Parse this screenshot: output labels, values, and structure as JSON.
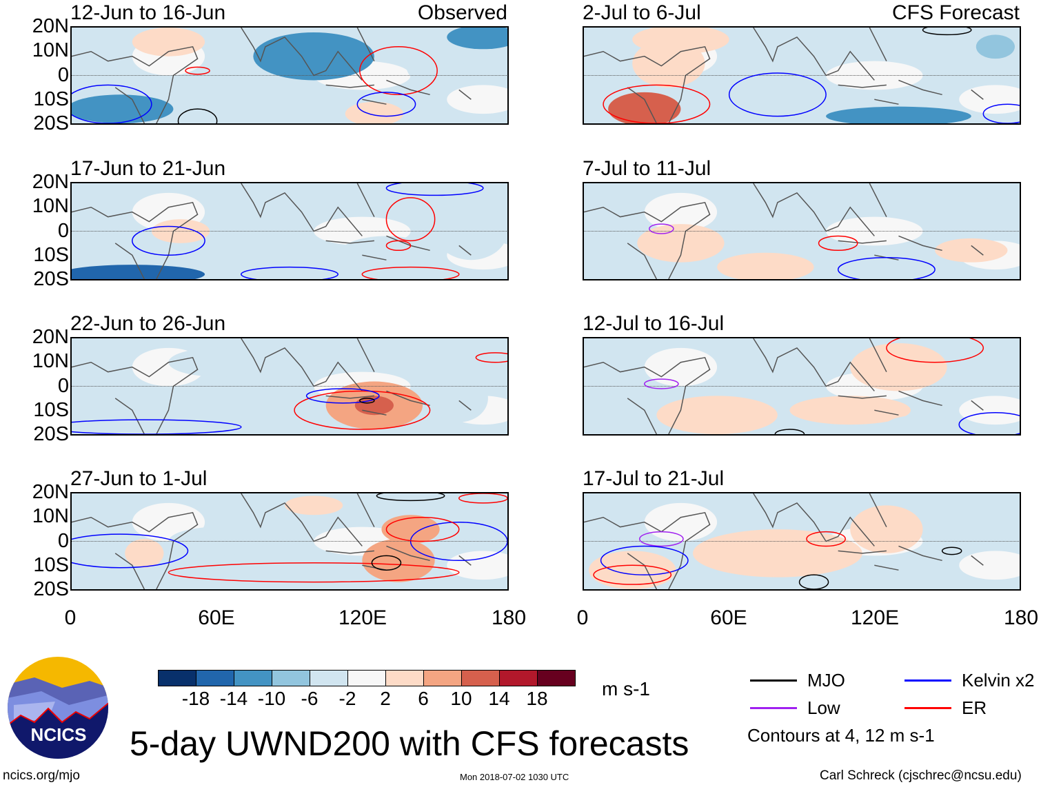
{
  "chart_data": {
    "type": "heatmap",
    "title": "5-day UWND200 with CFS forecasts",
    "units": "m s-1",
    "xlim": [
      0,
      180
    ],
    "ylim": [
      -20,
      20
    ],
    "x_ticks": [
      "0",
      "60E",
      "120E",
      "180"
    ],
    "y_ticks": [
      "20N",
      "10N",
      "0",
      "10S",
      "20S"
    ],
    "colorbar": {
      "labels": [
        "-18",
        "-14",
        "-10",
        "-6",
        "-2",
        "2",
        "6",
        "10",
        "14",
        "18"
      ],
      "colors": [
        "#08306b",
        "#2166ac",
        "#4393c3",
        "#92c5de",
        "#d1e5f0",
        "#f7f7f7",
        "#fddbc7",
        "#f4a582",
        "#d6604d",
        "#b2182b",
        "#67001f"
      ]
    },
    "columns": [
      {
        "label": "Observed"
      },
      {
        "label": "CFS Forecast"
      }
    ],
    "panels": [
      {
        "title": "12-Jun to 16-Jun",
        "corner": "Observed",
        "col": 0,
        "row": 0,
        "fill": [
          [
            100,
            8,
            25,
            10,
            -10
          ],
          [
            20,
            -14,
            22,
            6,
            -10
          ],
          [
            40,
            14,
            15,
            6,
            4
          ],
          [
            125,
            -16,
            12,
            5,
            4
          ],
          [
            170,
            16,
            15,
            5,
            -10
          ],
          [
            65,
            -5,
            12,
            8,
            -4
          ],
          [
            150,
            5,
            12,
            10,
            -4
          ]
        ],
        "contours": [
          [
            "ER",
            135,
            2,
            16,
            10
          ],
          [
            "Kelvin",
            130,
            -12,
            12,
            5
          ],
          [
            "MJO",
            52,
            -19,
            8,
            5
          ],
          [
            "ER",
            52,
            2,
            5,
            1.5
          ],
          [
            "Kelvin",
            15,
            -12,
            18,
            8
          ]
        ]
      },
      {
        "title": "2-Jul to 6-Jul",
        "corner": "CFS Forecast",
        "col": 1,
        "row": 0,
        "fill": [
          [
            25,
            -14,
            15,
            7,
            14
          ],
          [
            35,
            5,
            15,
            10,
            4
          ],
          [
            130,
            -17,
            30,
            4,
            -10
          ],
          [
            40,
            15,
            20,
            6,
            4
          ],
          [
            95,
            10,
            20,
            6,
            -4
          ],
          [
            170,
            12,
            8,
            5,
            -6
          ]
        ],
        "contours": [
          [
            "Kelvin",
            80,
            -8,
            20,
            9
          ],
          [
            "ER",
            30,
            -12,
            22,
            8
          ],
          [
            "Kelvin",
            175,
            -16,
            10,
            4
          ],
          [
            "MJO",
            150,
            19,
            10,
            2
          ]
        ]
      },
      {
        "title": "17-Jun to 21-Jun",
        "corner": "",
        "col": 0,
        "row": 1,
        "fill": [
          [
            25,
            -18,
            30,
            4,
            -14
          ],
          [
            45,
            0,
            12,
            5,
            4
          ],
          [
            130,
            -10,
            20,
            8,
            -4
          ],
          [
            165,
            0,
            15,
            12,
            -4
          ],
          [
            10,
            5,
            10,
            8,
            -4
          ]
        ],
        "contours": [
          [
            "ER",
            140,
            5,
            10,
            9
          ],
          [
            "Kelvin",
            40,
            -4,
            15,
            6
          ],
          [
            "Kelvin",
            150,
            18,
            20,
            3
          ],
          [
            "ER",
            140,
            -18,
            20,
            3
          ],
          [
            "Kelvin",
            90,
            -18,
            20,
            3
          ],
          [
            "ER",
            135,
            -6,
            5,
            2
          ]
        ]
      },
      {
        "title": "7-Jul to 11-Jul",
        "corner": "",
        "col": 1,
        "row": 1,
        "fill": [
          [
            75,
            -15,
            20,
            6,
            6
          ],
          [
            40,
            -5,
            18,
            8,
            4
          ],
          [
            160,
            5,
            15,
            10,
            -4
          ],
          [
            130,
            -15,
            20,
            5,
            -4
          ],
          [
            160,
            -8,
            15,
            5,
            4
          ]
        ],
        "contours": [
          [
            "Low",
            32,
            1,
            5,
            2
          ],
          [
            "ER",
            105,
            -5,
            8,
            3
          ],
          [
            "Kelvin",
            125,
            -16,
            20,
            5
          ]
        ]
      },
      {
        "title": "22-Jun to 26-Jun",
        "corner": "",
        "col": 0,
        "row": 2,
        "fill": [
          [
            125,
            -8,
            20,
            10,
            10
          ],
          [
            125,
            -8,
            8,
            4,
            14
          ],
          [
            60,
            10,
            20,
            6,
            -4
          ],
          [
            160,
            -5,
            12,
            10,
            -4
          ],
          [
            30,
            -15,
            20,
            5,
            -4
          ]
        ],
        "contours": [
          [
            "ER",
            120,
            -10,
            28,
            8
          ],
          [
            "Kelvin",
            112,
            -4,
            15,
            3
          ],
          [
            "MJO",
            122,
            -6,
            3,
            1
          ],
          [
            "ER",
            175,
            12,
            8,
            2
          ],
          [
            "Kelvin",
            30,
            -17,
            40,
            3
          ]
        ]
      },
      {
        "title": "12-Jul to 16-Jul",
        "corner": "",
        "col": 1,
        "row": 2,
        "fill": [
          [
            130,
            8,
            20,
            10,
            6
          ],
          [
            55,
            -12,
            25,
            8,
            4
          ],
          [
            110,
            -10,
            25,
            6,
            4
          ],
          [
            140,
            -16,
            15,
            4,
            -4
          ]
        ],
        "contours": [
          [
            "Low",
            32,
            1,
            7,
            2
          ],
          [
            "ER",
            145,
            16,
            20,
            6
          ],
          [
            "Kelvin",
            170,
            -16,
            15,
            5
          ],
          [
            "MJO",
            85,
            -20,
            6,
            2
          ]
        ]
      },
      {
        "title": "27-Jun to 1-Jul",
        "corner": "",
        "col": 0,
        "row": 3,
        "fill": [
          [
            135,
            -8,
            15,
            9,
            10
          ],
          [
            140,
            5,
            12,
            6,
            10
          ],
          [
            30,
            -5,
            8,
            6,
            6
          ],
          [
            100,
            15,
            12,
            4,
            4
          ],
          [
            60,
            0,
            20,
            6,
            -4
          ]
        ],
        "contours": [
          [
            "ER",
            100,
            -13,
            60,
            4
          ],
          [
            "Kelvin",
            160,
            0,
            20,
            8
          ],
          [
            "MJO",
            130,
            -9,
            6,
            3
          ],
          [
            "Kelvin",
            20,
            -4,
            28,
            7
          ],
          [
            "MJO",
            140,
            19,
            14,
            2
          ],
          [
            "ER",
            145,
            5,
            15,
            5
          ],
          [
            "ER",
            170,
            18,
            10,
            2
          ]
        ]
      },
      {
        "title": "17-Jul to 21-Jul",
        "corner": "",
        "col": 1,
        "row": 3,
        "fill": [
          [
            20,
            -12,
            18,
            8,
            6
          ],
          [
            80,
            -5,
            35,
            10,
            4
          ],
          [
            125,
            5,
            15,
            10,
            4
          ],
          [
            120,
            -14,
            10,
            5,
            -4
          ]
        ],
        "contours": [
          [
            "Low",
            32,
            1,
            9,
            3
          ],
          [
            "Kelvin",
            25,
            -8,
            18,
            6
          ],
          [
            "ER",
            20,
            -14,
            16,
            4
          ],
          [
            "ER",
            100,
            1,
            8,
            3
          ],
          [
            "MJO",
            95,
            -17,
            6,
            3
          ],
          [
            "MJO",
            152,
            -4,
            4,
            1.5
          ]
        ]
      }
    ],
    "legend": [
      {
        "name": "MJO",
        "color": "#000000"
      },
      {
        "name": "Kelvin x2",
        "color": "#0000ff"
      },
      {
        "name": "Low",
        "color": "#a020f0"
      },
      {
        "name": "ER",
        "color": "#ff0000"
      }
    ],
    "contour_note": "Contours at 4, 12 m s-1"
  },
  "footer": {
    "left": "ncics.org/mjo",
    "center": "Mon 2018-07-02 1030 UTC",
    "right": "Carl Schreck (cjschrec@ncsu.edu)"
  },
  "logo": {
    "text": "NCICS"
  }
}
